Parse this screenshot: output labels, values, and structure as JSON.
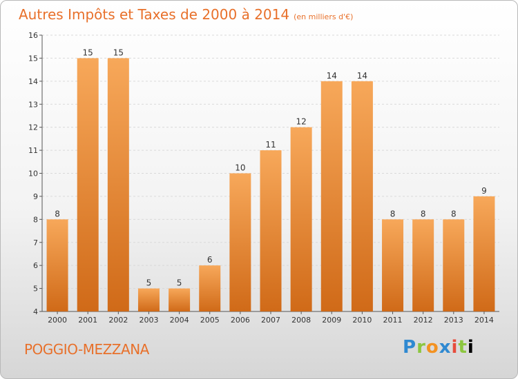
{
  "header": {
    "title": "Autres Impôts et Taxes de 2000 à 2014",
    "subtitle": "(en milliers d'€)"
  },
  "footer": {
    "place": "POGGIO-MEZZANA",
    "logo_text": "Proxiti"
  },
  "colors": {
    "bar_top": "#f7a85a",
    "bar_bottom": "#d06a18",
    "title": "#e8702a",
    "grid": "#d9d9d9"
  },
  "chart_data": {
    "type": "bar",
    "title": "Autres Impôts et Taxes de 2000 à 2014",
    "subtitle": "(en milliers d'€)",
    "categories": [
      "2000",
      "2001",
      "2002",
      "2003",
      "2004",
      "2005",
      "2006",
      "2007",
      "2008",
      "2009",
      "2010",
      "2011",
      "2012",
      "2013",
      "2014"
    ],
    "values": [
      8,
      15,
      15,
      5,
      5,
      6,
      10,
      11,
      12,
      14,
      14,
      8,
      8,
      8,
      9
    ],
    "ylim": [
      4,
      16
    ],
    "yticks": [
      4,
      5,
      6,
      7,
      8,
      9,
      10,
      11,
      12,
      13,
      14,
      15,
      16
    ],
    "xlabel": "",
    "ylabel": "",
    "grid": true,
    "legend": "none"
  }
}
